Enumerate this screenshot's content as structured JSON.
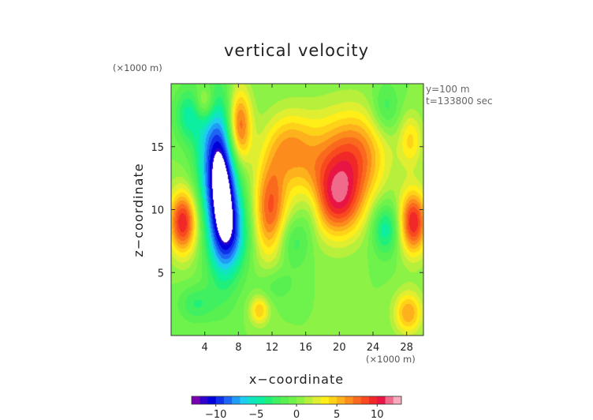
{
  "chart_data": {
    "type": "heatmap",
    "title": "vertical velocity",
    "xlabel": "x−coordinate",
    "ylabel": "z−coordinate",
    "x_unit": "(×1000 m)",
    "y_unit": "(×1000 m)",
    "annotations": [
      "y=100 m",
      "t=133800 sec"
    ],
    "xlim": [
      0,
      30
    ],
    "ylim": [
      0,
      20
    ],
    "x_ticks": [
      4,
      8,
      12,
      16,
      20,
      24,
      28
    ],
    "y_ticks": [
      5,
      10,
      15
    ],
    "colorbar": {
      "range": [
        -13,
        13
      ],
      "step": 1,
      "ticks": [
        -10,
        -5,
        0,
        5,
        10
      ],
      "tick_labels": [
        "−10",
        "−5",
        "0",
        "5",
        "10"
      ],
      "colors": [
        "#7a00b4",
        "#3200cc",
        "#0000dc",
        "#1030ea",
        "#1e64f5",
        "#1f9cf5",
        "#1ecdf0",
        "#10e4c0",
        "#0cefa0",
        "#20f07a",
        "#40f060",
        "#58f050",
        "#6ef24c",
        "#8cf245",
        "#b6f03c",
        "#e0ee32",
        "#ffee18",
        "#ffd21a",
        "#fdb11c",
        "#fc8c1c",
        "#fa6a1e",
        "#f84a1e",
        "#f02828",
        "#e81444",
        "#f06a8c",
        "#f6aabe"
      ]
    },
    "features": [
      {
        "x": 6.2,
        "z": 11.0,
        "value": -12,
        "sx": 1.4,
        "sz": 4.2
      },
      {
        "x": 4.7,
        "z": 14.5,
        "value": -5,
        "sx": 1.5,
        "sz": 3.5
      },
      {
        "x": 7.5,
        "z": 8.0,
        "value": -4,
        "sx": 1.5,
        "sz": 2.0
      },
      {
        "x": 1.4,
        "z": 9.0,
        "value": 10,
        "sx": 1.2,
        "sz": 1.8
      },
      {
        "x": 8.1,
        "z": 16.5,
        "value": 9,
        "sx": 1.0,
        "sz": 2.2
      },
      {
        "x": 11.8,
        "z": 10.0,
        "value": 8,
        "sx": 1.4,
        "sz": 2.8
      },
      {
        "x": 28.8,
        "z": 9.0,
        "value": 10,
        "sx": 1.2,
        "sz": 1.8
      },
      {
        "x": 14.0,
        "z": 15.0,
        "value": 5,
        "sx": 2.0,
        "sz": 2.0
      },
      {
        "x": 19.0,
        "z": 13.0,
        "value": 6,
        "sx": 3.0,
        "sz": 3.0
      },
      {
        "x": 22.5,
        "z": 14.5,
        "value": 5,
        "sx": 2.5,
        "sz": 2.5
      },
      {
        "x": 20.0,
        "z": 10.5,
        "value": 6,
        "sx": 2.0,
        "sz": 2.0
      },
      {
        "x": 14.5,
        "z": 7.5,
        "value": -3,
        "sx": 1.5,
        "sz": 1.5
      },
      {
        "x": 25.5,
        "z": 8.5,
        "value": -5,
        "sx": 1.2,
        "sz": 1.5
      },
      {
        "x": 2.0,
        "z": 17.5,
        "value": -4,
        "sx": 1.2,
        "sz": 1.5
      },
      {
        "x": 25.5,
        "z": 18.0,
        "value": -3,
        "sx": 1.2,
        "sz": 1.5
      },
      {
        "x": 10.5,
        "z": 2.0,
        "value": 5,
        "sx": 0.8,
        "sz": 0.8
      },
      {
        "x": 28.2,
        "z": 1.8,
        "value": 6,
        "sx": 1.2,
        "sz": 1.2
      },
      {
        "x": 3.0,
        "z": 2.5,
        "value": -3,
        "sx": 1.5,
        "sz": 1.0
      },
      {
        "x": 12.5,
        "z": 4.0,
        "value": -2,
        "sx": 1.5,
        "sz": 1.0
      },
      {
        "x": 4.0,
        "z": 18.5,
        "value": 4,
        "sx": 0.8,
        "sz": 1.0
      },
      {
        "x": 28.5,
        "z": 15.5,
        "value": 4,
        "sx": 1.0,
        "sz": 1.5
      },
      {
        "x": 16.5,
        "z": 10.0,
        "value": -2,
        "sx": 1.0,
        "sz": 1.5
      }
    ]
  }
}
